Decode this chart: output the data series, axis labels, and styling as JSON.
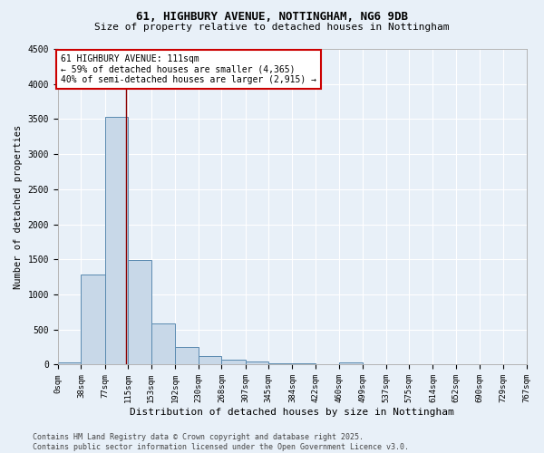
{
  "title_line1": "61, HIGHBURY AVENUE, NOTTINGHAM, NG6 9DB",
  "title_line2": "Size of property relative to detached houses in Nottingham",
  "xlabel": "Distribution of detached houses by size in Nottingham",
  "ylabel": "Number of detached properties",
  "bin_edges": [
    0,
    38,
    77,
    115,
    153,
    192,
    230,
    268,
    307,
    345,
    384,
    422,
    460,
    499,
    537,
    575,
    614,
    652,
    690,
    729,
    767
  ],
  "bar_heights": [
    30,
    1290,
    3530,
    1490,
    590,
    245,
    120,
    75,
    45,
    25,
    25,
    5,
    35,
    5,
    5,
    5,
    5,
    5,
    5,
    5
  ],
  "bar_color": "#c8d8e8",
  "bar_edge_color": "#5a8ab0",
  "property_line_x": 111,
  "property_line_color": "#8b0000",
  "annotation_text": "61 HIGHBURY AVENUE: 111sqm\n← 59% of detached houses are smaller (4,365)\n40% of semi-detached houses are larger (2,915) →",
  "annotation_box_color": "#ffffff",
  "annotation_box_edge_color": "#cc0000",
  "ylim": [
    0,
    4500
  ],
  "yticks": [
    0,
    500,
    1000,
    1500,
    2000,
    2500,
    3000,
    3500,
    4000,
    4500
  ],
  "background_color": "#e8f0f8",
  "grid_color": "#ffffff",
  "footnote": "Contains HM Land Registry data © Crown copyright and database right 2025.\nContains public sector information licensed under the Open Government Licence v3.0.",
  "tick_labels": [
    "0sqm",
    "38sqm",
    "77sqm",
    "115sqm",
    "153sqm",
    "192sqm",
    "230sqm",
    "268sqm",
    "307sqm",
    "345sqm",
    "384sqm",
    "422sqm",
    "460sqm",
    "499sqm",
    "537sqm",
    "575sqm",
    "614sqm",
    "652sqm",
    "690sqm",
    "729sqm",
    "767sqm"
  ],
  "title1_fontsize": 9,
  "title2_fontsize": 8,
  "xlabel_fontsize": 8,
  "ylabel_fontsize": 7.5,
  "tick_fontsize": 6.5,
  "annotation_fontsize": 7,
  "footnote_fontsize": 6
}
